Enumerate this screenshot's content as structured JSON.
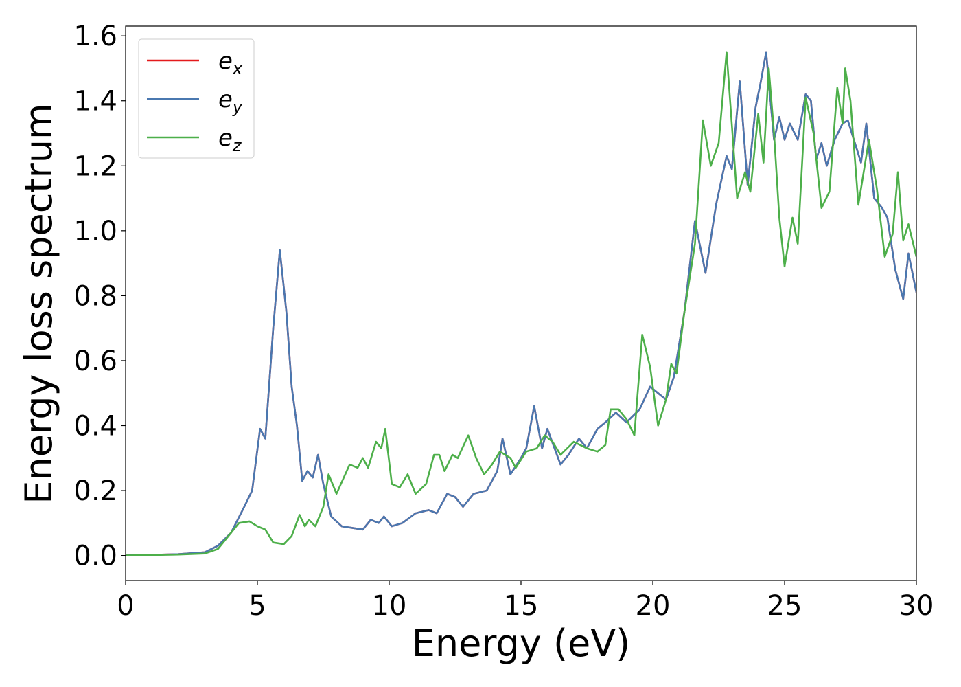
{
  "chart_data": {
    "type": "line",
    "x_label": "Energy (eV)",
    "y_label": "Energy loss spectrum",
    "xlim": [
      0,
      30
    ],
    "xticks": [
      0,
      5,
      10,
      15,
      20,
      25,
      30
    ],
    "ylim": [
      -0.077,
      1.63
    ],
    "yticks": [
      {
        "value": 0,
        "label": "0.0"
      },
      {
        "value": 0.2,
        "label": "0.2"
      },
      {
        "value": 0.4,
        "label": "0.4"
      },
      {
        "value": 0.6,
        "label": "0.6"
      },
      {
        "value": 0.8,
        "label": "0.8"
      },
      {
        "value": 1,
        "label": "1.0"
      },
      {
        "value": 1.2,
        "label": "1.2"
      },
      {
        "value": 1.4,
        "label": "1.4"
      },
      {
        "value": 1.6,
        "label": "1.6"
      }
    ],
    "legend": "upper left",
    "series": [
      {
        "name": "ex",
        "color": "#e41a1c",
        "x": [
          0,
          1,
          2,
          3,
          3.5,
          4,
          4.5,
          4.8,
          5.1,
          5.3,
          5.6,
          5.85,
          6.1,
          6.3,
          6.5,
          6.7,
          6.9,
          7.1,
          7.3,
          7.5,
          7.8,
          8.2,
          8.6,
          9.0,
          9.3,
          9.6,
          9.8,
          10.1,
          10.5,
          11.0,
          11.5,
          11.8,
          12.2,
          12.5,
          12.8,
          13.2,
          13.7,
          14.1,
          14.3,
          14.6,
          15.0,
          15.2,
          15.5,
          15.8,
          16.0,
          16.5,
          16.8,
          17.2,
          17.5,
          17.9,
          18.2,
          18.6,
          19.0,
          19.5,
          19.9,
          20.2,
          20.5,
          20.8,
          21.2,
          21.6,
          22.0,
          22.4,
          22.8,
          23.0,
          23.3,
          23.6,
          23.9,
          24.1,
          24.3,
          24.6,
          24.8,
          25.0,
          25.2,
          25.5,
          25.8,
          26.0,
          26.2,
          26.4,
          26.6,
          26.9,
          27.2,
          27.4,
          27.9,
          28.1,
          28.4,
          28.7,
          28.9,
          29.2,
          29.5,
          29.7,
          30
        ],
        "values": [
          0,
          0.002,
          0.004,
          0.01,
          0.03,
          0.07,
          0.15,
          0.2,
          0.39,
          0.36,
          0.7,
          0.94,
          0.75,
          0.52,
          0.4,
          0.23,
          0.26,
          0.24,
          0.31,
          0.22,
          0.12,
          0.09,
          0.085,
          0.08,
          0.11,
          0.1,
          0.12,
          0.09,
          0.1,
          0.13,
          0.14,
          0.13,
          0.19,
          0.18,
          0.15,
          0.19,
          0.2,
          0.26,
          0.36,
          0.25,
          0.3,
          0.33,
          0.46,
          0.33,
          0.39,
          0.28,
          0.31,
          0.36,
          0.33,
          0.39,
          0.41,
          0.44,
          0.41,
          0.45,
          0.52,
          0.5,
          0.48,
          0.55,
          0.75,
          1.03,
          0.87,
          1.08,
          1.23,
          1.19,
          1.46,
          1.14,
          1.38,
          1.46,
          1.55,
          1.28,
          1.35,
          1.28,
          1.33,
          1.28,
          1.42,
          1.4,
          1.22,
          1.27,
          1.2,
          1.28,
          1.33,
          1.34,
          1.21,
          1.33,
          1.1,
          1.07,
          1.04,
          0.88,
          0.79,
          0.93,
          0.81
        ]
      },
      {
        "name": "ey",
        "color": "#4a78b0",
        "x": [
          0,
          1,
          2,
          3,
          3.5,
          4,
          4.5,
          4.8,
          5.1,
          5.3,
          5.6,
          5.85,
          6.1,
          6.3,
          6.5,
          6.7,
          6.9,
          7.1,
          7.3,
          7.5,
          7.8,
          8.2,
          8.6,
          9.0,
          9.3,
          9.6,
          9.8,
          10.1,
          10.5,
          11.0,
          11.5,
          11.8,
          12.2,
          12.5,
          12.8,
          13.2,
          13.7,
          14.1,
          14.3,
          14.6,
          15.0,
          15.2,
          15.5,
          15.8,
          16.0,
          16.5,
          16.8,
          17.2,
          17.5,
          17.9,
          18.2,
          18.6,
          19.0,
          19.5,
          19.9,
          20.2,
          20.5,
          20.8,
          21.2,
          21.6,
          22.0,
          22.4,
          22.8,
          23.0,
          23.3,
          23.6,
          23.9,
          24.1,
          24.3,
          24.6,
          24.8,
          25.0,
          25.2,
          25.5,
          25.8,
          26.0,
          26.2,
          26.4,
          26.6,
          26.9,
          27.2,
          27.4,
          27.9,
          28.1,
          28.4,
          28.7,
          28.9,
          29.2,
          29.5,
          29.7,
          30
        ],
        "values": [
          0,
          0.002,
          0.004,
          0.01,
          0.03,
          0.07,
          0.15,
          0.2,
          0.39,
          0.36,
          0.7,
          0.94,
          0.75,
          0.52,
          0.4,
          0.23,
          0.26,
          0.24,
          0.31,
          0.22,
          0.12,
          0.09,
          0.085,
          0.08,
          0.11,
          0.1,
          0.12,
          0.09,
          0.1,
          0.13,
          0.14,
          0.13,
          0.19,
          0.18,
          0.15,
          0.19,
          0.2,
          0.26,
          0.36,
          0.25,
          0.3,
          0.33,
          0.46,
          0.33,
          0.39,
          0.28,
          0.31,
          0.36,
          0.33,
          0.39,
          0.41,
          0.44,
          0.41,
          0.45,
          0.52,
          0.5,
          0.48,
          0.55,
          0.75,
          1.03,
          0.87,
          1.08,
          1.23,
          1.19,
          1.46,
          1.14,
          1.38,
          1.46,
          1.55,
          1.28,
          1.35,
          1.28,
          1.33,
          1.28,
          1.42,
          1.4,
          1.22,
          1.27,
          1.2,
          1.28,
          1.33,
          1.34,
          1.21,
          1.33,
          1.1,
          1.07,
          1.04,
          0.88,
          0.79,
          0.93,
          0.81
        ]
      },
      {
        "name": "ez",
        "color": "#4daf4a",
        "x": [
          0,
          2,
          3,
          3.5,
          4,
          4.3,
          4.7,
          5.0,
          5.3,
          5.6,
          6.0,
          6.3,
          6.6,
          6.8,
          6.95,
          7.2,
          7.5,
          7.7,
          8.0,
          8.5,
          8.8,
          9.0,
          9.2,
          9.5,
          9.7,
          9.85,
          10.1,
          10.4,
          10.7,
          11.0,
          11.4,
          11.7,
          11.9,
          12.1,
          12.4,
          12.6,
          13.0,
          13.3,
          13.6,
          13.9,
          14.2,
          14.6,
          14.8,
          15.2,
          15.6,
          15.9,
          16.2,
          16.5,
          17.0,
          17.5,
          17.9,
          18.2,
          18.4,
          18.7,
          19.0,
          19.3,
          19.6,
          19.9,
          20.2,
          20.5,
          20.7,
          20.9,
          21.2,
          21.6,
          21.9,
          22.2,
          22.5,
          22.8,
          23.2,
          23.5,
          23.7,
          24.0,
          24.2,
          24.4,
          24.6,
          24.8,
          25.0,
          25.3,
          25.5,
          25.8,
          26.1,
          26.4,
          26.7,
          27.0,
          27.2,
          27.3,
          27.5,
          27.8,
          28.2,
          28.5,
          28.8,
          29.1,
          29.3,
          29.5,
          29.7,
          30
        ],
        "values": [
          0,
          0.003,
          0.006,
          0.02,
          0.07,
          0.1,
          0.105,
          0.09,
          0.08,
          0.04,
          0.035,
          0.06,
          0.125,
          0.09,
          0.11,
          0.09,
          0.15,
          0.25,
          0.19,
          0.28,
          0.27,
          0.3,
          0.27,
          0.35,
          0.33,
          0.39,
          0.22,
          0.21,
          0.25,
          0.19,
          0.22,
          0.31,
          0.31,
          0.26,
          0.31,
          0.3,
          0.37,
          0.3,
          0.25,
          0.28,
          0.32,
          0.3,
          0.27,
          0.32,
          0.33,
          0.37,
          0.35,
          0.31,
          0.35,
          0.33,
          0.32,
          0.34,
          0.45,
          0.45,
          0.42,
          0.37,
          0.68,
          0.58,
          0.4,
          0.48,
          0.59,
          0.56,
          0.75,
          0.96,
          1.34,
          1.2,
          1.27,
          1.55,
          1.1,
          1.18,
          1.12,
          1.36,
          1.21,
          1.5,
          1.3,
          1.04,
          0.89,
          1.04,
          0.96,
          1.41,
          1.3,
          1.07,
          1.12,
          1.44,
          1.33,
          1.5,
          1.4,
          1.08,
          1.28,
          1.13,
          0.92,
          0.99,
          1.18,
          0.97,
          1.02,
          0.92
        ]
      }
    ]
  }
}
